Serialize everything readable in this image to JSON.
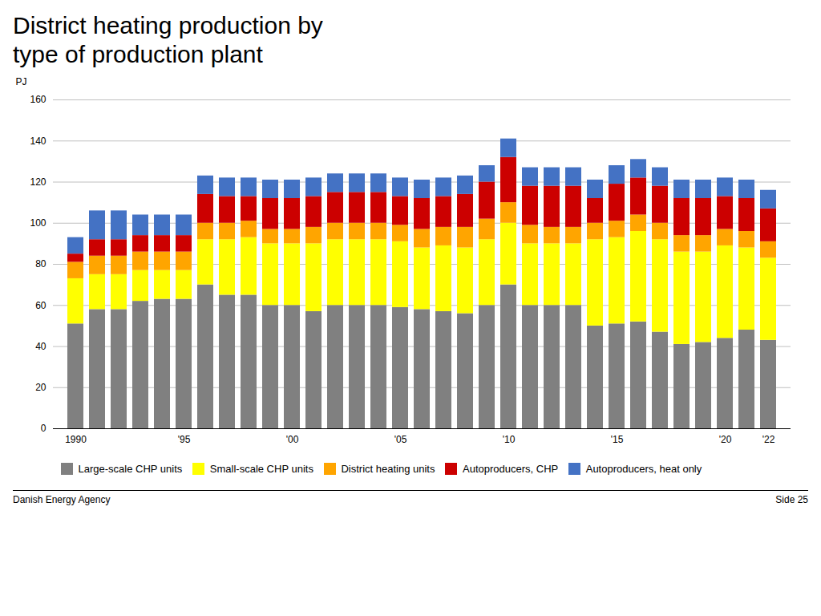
{
  "chart_data": {
    "type": "bar",
    "stacked": true,
    "title": "District heating production by\ntype of production plant",
    "ylabel": "PJ",
    "categories": [
      "1990",
      null,
      null,
      null,
      null,
      "'95",
      null,
      null,
      null,
      null,
      "'00",
      null,
      null,
      null,
      null,
      "'05",
      null,
      null,
      null,
      null,
      "'10",
      null,
      null,
      null,
      null,
      "'15",
      null,
      null,
      null,
      null,
      "'20",
      null,
      "'22"
    ],
    "series": [
      {
        "name": "Large-scale CHP units",
        "color": "#808080",
        "values": [
          51,
          58,
          58,
          62,
          63,
          63,
          70,
          65,
          65,
          60,
          60,
          57,
          60,
          60,
          60,
          59,
          58,
          57,
          56,
          60,
          70,
          60,
          60,
          60,
          50,
          51,
          52,
          47,
          41,
          42,
          44,
          48,
          43
        ]
      },
      {
        "name": "Small-scale CHP units",
        "color": "#FFFF00",
        "values": [
          22,
          17,
          17,
          15,
          14,
          14,
          22,
          27,
          28,
          30,
          30,
          33,
          32,
          32,
          32,
          32,
          30,
          32,
          32,
          32,
          30,
          30,
          30,
          30,
          42,
          42,
          44,
          45,
          45,
          44,
          45,
          40,
          40
        ]
      },
      {
        "name": "District heating units",
        "color": "#FFA500",
        "values": [
          8,
          9,
          9,
          9,
          9,
          9,
          8,
          8,
          8,
          7,
          7,
          8,
          8,
          8,
          8,
          8,
          9,
          9,
          10,
          10,
          10,
          9,
          8,
          8,
          8,
          8,
          8,
          8,
          8,
          8,
          8,
          8,
          8
        ]
      },
      {
        "name": "Autoproducers, CHP",
        "color": "#CC0000",
        "values": [
          4,
          8,
          8,
          8,
          8,
          8,
          14,
          13,
          12,
          15,
          15,
          15,
          15,
          15,
          15,
          14,
          15,
          15,
          16,
          18,
          22,
          19,
          20,
          20,
          12,
          18,
          18,
          18,
          18,
          18,
          16,
          16,
          16
        ]
      },
      {
        "name": "Autoproducers, heat only",
        "color": "#4472C4",
        "values": [
          8,
          14,
          14,
          10,
          10,
          10,
          9,
          9,
          9,
          9,
          9,
          9,
          9,
          9,
          9,
          9,
          9,
          9,
          9,
          8,
          9,
          9,
          9,
          9,
          9,
          9,
          9,
          9,
          9,
          9,
          9,
          9,
          9
        ]
      }
    ],
    "ylim": [
      0,
      160
    ],
    "yticks": [
      0,
      20,
      40,
      60,
      80,
      100,
      120,
      140,
      160
    ],
    "grid": true,
    "legend": "bottom",
    "annotations": [
      "Danish Energy Agency",
      "Side 25"
    ]
  }
}
